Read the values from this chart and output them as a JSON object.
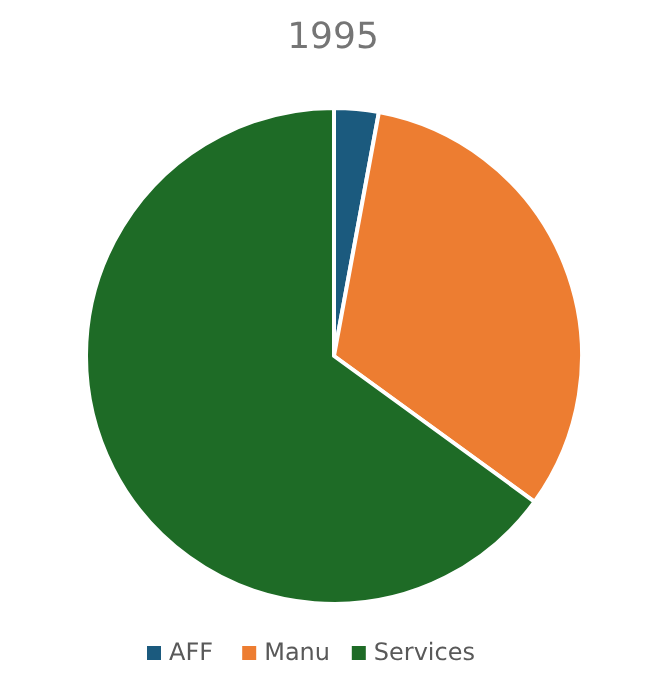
{
  "chart_data": {
    "type": "pie",
    "title": "1995",
    "categories": [
      "AFF",
      "Manu",
      "Services"
    ],
    "values": [
      2.9,
      32.1,
      65.0
    ],
    "colors": [
      "#1b5a7e",
      "#ed7d31",
      "#1e6b26"
    ],
    "legend": "bottom"
  }
}
